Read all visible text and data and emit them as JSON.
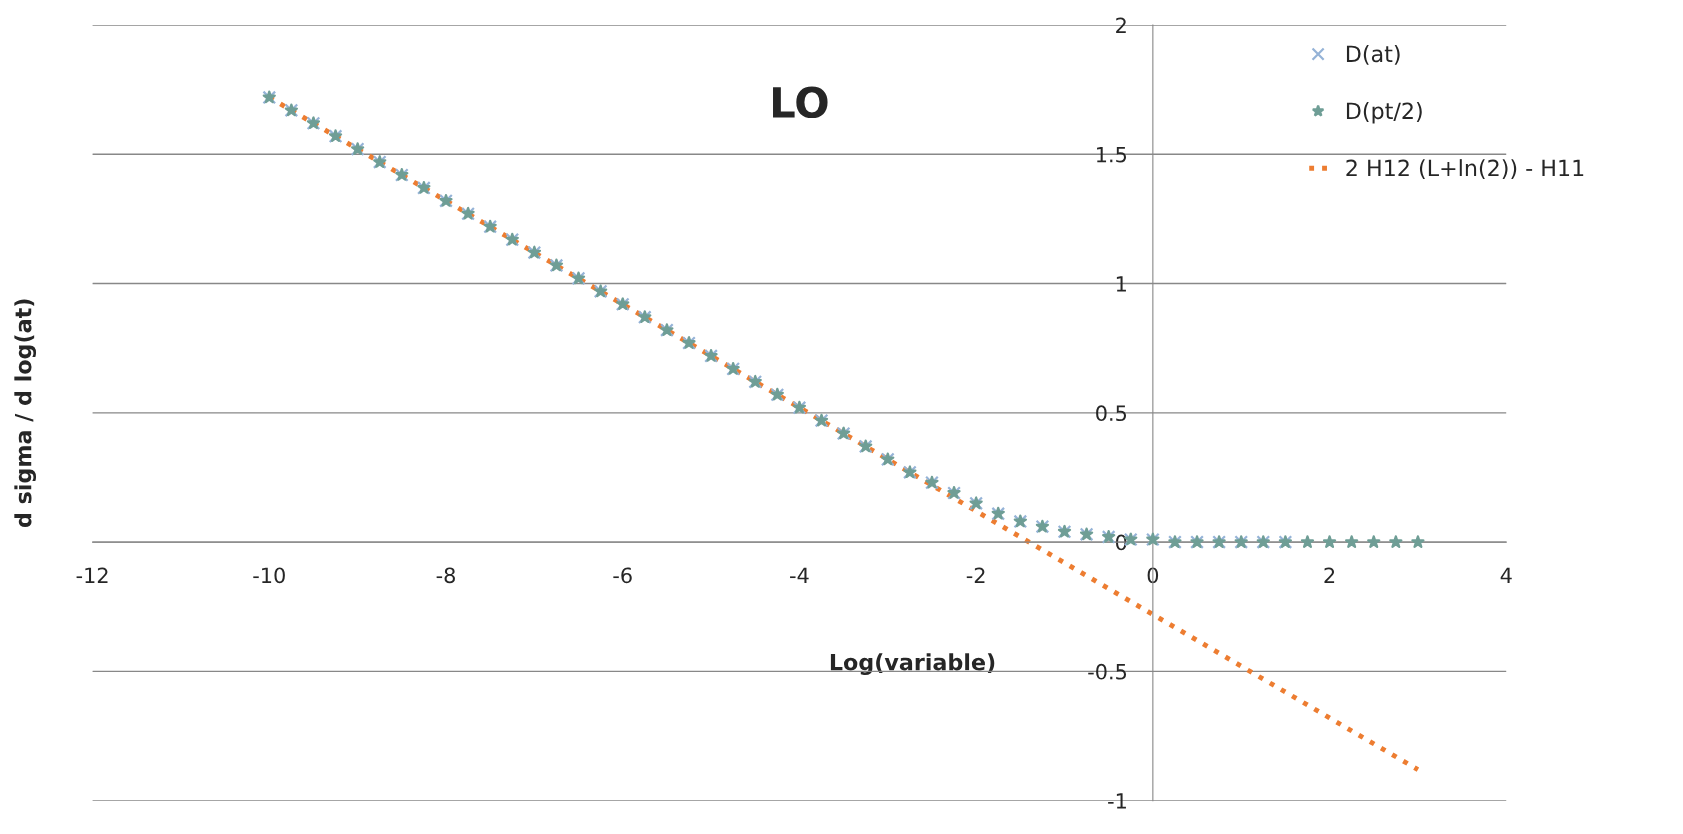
{
  "chart_data": {
    "type": "scatter",
    "title": "LO",
    "xlabel": "Log(variable)",
    "ylabel": "d sigma / d log(at)",
    "xlim": [
      -12,
      4
    ],
    "xticks": [
      -12,
      -10,
      -8,
      -6,
      -4,
      -2,
      0,
      2,
      4
    ],
    "ylim": [
      -1,
      2
    ],
    "yticks": [
      -1,
      -0.5,
      0,
      0.5,
      1,
      1.5,
      2
    ],
    "grid": "y",
    "legend": "top right",
    "series": [
      {
        "name": "D(at)",
        "color": "#95b3d7",
        "marker": "cross",
        "x": [
          -10,
          -9.75,
          -9.5,
          -9.25,
          -9,
          -8.75,
          -8.5,
          -8.25,
          -8,
          -7.75,
          -7.5,
          -7.25,
          -7,
          -6.75,
          -6.5,
          -6.25,
          -6,
          -5.75,
          -5.5,
          -5.25,
          -5,
          -4.75,
          -4.5,
          -4.25,
          -4,
          -3.75,
          -3.5,
          -3.25,
          -3,
          -2.75,
          -2.5,
          -2.25,
          -2,
          -1.75,
          -1.5,
          -1.25,
          -1,
          -0.75,
          -0.5,
          -0.25,
          0,
          0.25,
          0.5,
          0.75,
          1,
          1.25,
          1.5
        ],
        "values": [
          1.72,
          1.67,
          1.62,
          1.57,
          1.52,
          1.47,
          1.42,
          1.37,
          1.32,
          1.27,
          1.22,
          1.17,
          1.12,
          1.07,
          1.02,
          0.97,
          0.92,
          0.87,
          0.82,
          0.77,
          0.72,
          0.67,
          0.62,
          0.57,
          0.52,
          0.47,
          0.42,
          0.37,
          0.32,
          0.27,
          0.23,
          0.19,
          0.15,
          0.11,
          0.08,
          0.06,
          0.04,
          0.03,
          0.02,
          0.01,
          0.01,
          0,
          0,
          0,
          0,
          0,
          0
        ]
      },
      {
        "name": "D(pt/2)",
        "color": "#6f9e96",
        "marker": "star",
        "x": [
          -10,
          -9.75,
          -9.5,
          -9.25,
          -9,
          -8.75,
          -8.5,
          -8.25,
          -8,
          -7.75,
          -7.5,
          -7.25,
          -7,
          -6.75,
          -6.5,
          -6.25,
          -6,
          -5.75,
          -5.5,
          -5.25,
          -5,
          -4.75,
          -4.5,
          -4.25,
          -4,
          -3.75,
          -3.5,
          -3.25,
          -3,
          -2.75,
          -2.5,
          -2.25,
          -2,
          -1.75,
          -1.5,
          -1.25,
          -1,
          -0.75,
          -0.5,
          -0.25,
          0,
          0.25,
          0.5,
          0.75,
          1,
          1.25,
          1.5,
          1.75,
          2,
          2.25,
          2.5,
          2.75,
          3
        ],
        "values": [
          1.72,
          1.67,
          1.62,
          1.57,
          1.52,
          1.47,
          1.42,
          1.37,
          1.32,
          1.27,
          1.22,
          1.17,
          1.12,
          1.07,
          1.02,
          0.97,
          0.92,
          0.87,
          0.82,
          0.77,
          0.72,
          0.67,
          0.62,
          0.57,
          0.52,
          0.47,
          0.42,
          0.37,
          0.32,
          0.27,
          0.23,
          0.19,
          0.15,
          0.11,
          0.08,
          0.06,
          0.04,
          0.03,
          0.02,
          0.01,
          0.01,
          0,
          0,
          0,
          0,
          0,
          0,
          0,
          0,
          0,
          0,
          0,
          0
        ]
      },
      {
        "name": "2 H12 (L+ln(2)) - H11",
        "type": "line",
        "color": "#ed7d31",
        "line_style": "dotted",
        "marker": "none",
        "x": [
          -10,
          -9,
          -8,
          -7,
          -6,
          -5,
          -4,
          -3,
          -2,
          -1,
          0,
          1,
          2,
          3
        ],
        "values": [
          1.72,
          1.52,
          1.32,
          1.12,
          0.92,
          0.72,
          0.52,
          0.32,
          0.12,
          -0.08,
          -0.28,
          -0.48,
          -0.68,
          -0.88
        ]
      }
    ]
  }
}
